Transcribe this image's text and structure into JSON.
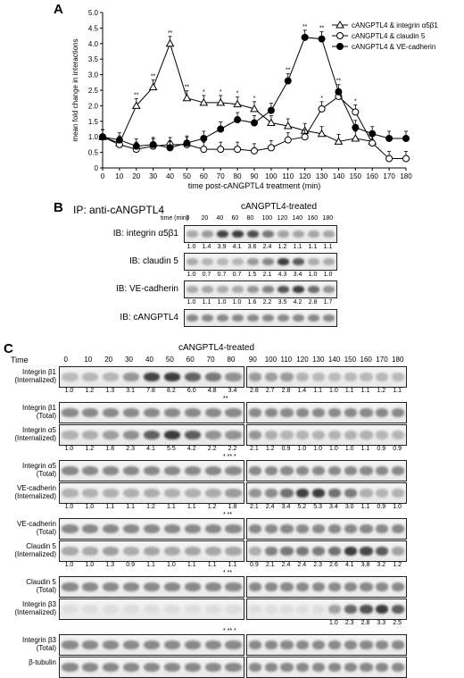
{
  "panelA": {
    "letter": "A",
    "chart_data": {
      "type": "line",
      "ylabel": "mean fold change in interactions",
      "xlabel": "time post-cANGPTL4 treatment (min)",
      "ylim": [
        0,
        5.0
      ],
      "xlim": [
        0,
        180
      ],
      "x": [
        0,
        10,
        20,
        30,
        40,
        50,
        60,
        70,
        80,
        90,
        100,
        110,
        120,
        130,
        140,
        150,
        160,
        170,
        180
      ],
      "yticks": [
        "0",
        "0.5",
        "1.0",
        "1.5",
        "2.0",
        "2.5",
        "3.0",
        "3.5",
        "4.0",
        "4.5",
        "5.0"
      ],
      "xticks": [
        "0",
        "10",
        "20",
        "30",
        "40",
        "50",
        "60",
        "70",
        "80",
        "90",
        "100",
        "110",
        "120",
        "130",
        "140",
        "150",
        "160",
        "170",
        "180"
      ],
      "series": [
        {
          "name": "cANGPTL4 & integrin α5β1",
          "marker": "triangle",
          "values": [
            1.0,
            0.8,
            2.0,
            2.6,
            4.0,
            2.25,
            2.1,
            2.1,
            2.05,
            1.9,
            1.45,
            1.35,
            1.2,
            1.1,
            0.85,
            0.95,
            0.85,
            null,
            null
          ],
          "sig": [
            "",
            "",
            "**",
            "**",
            "**",
            "**",
            "*",
            "*",
            "*",
            "*",
            "",
            "",
            "",
            "",
            "",
            "",
            "",
            "",
            ""
          ]
        },
        {
          "name": "cANGPTL4 & claudin 5",
          "marker": "open-circle",
          "values": [
            1.0,
            0.75,
            0.6,
            0.7,
            0.75,
            0.75,
            0.6,
            0.6,
            0.6,
            0.55,
            0.65,
            0.9,
            1.0,
            1.9,
            2.3,
            1.8,
            0.8,
            0.3,
            0.3
          ],
          "sig": [
            "",
            "",
            "",
            "",
            "",
            "",
            "",
            "",
            "",
            "",
            "",
            "",
            "",
            "*",
            "",
            "*",
            "",
            "",
            ""
          ]
        },
        {
          "name": "cANGPTL4 & VE-cadherin",
          "marker": "filled-circle",
          "values": [
            1.0,
            0.9,
            0.7,
            0.75,
            0.65,
            0.8,
            0.95,
            1.25,
            1.55,
            1.45,
            1.85,
            2.8,
            4.2,
            4.15,
            2.45,
            1.3,
            1.1,
            0.95,
            0.95
          ],
          "sig": [
            "",
            "",
            "",
            "",
            "",
            "",
            "",
            "",
            "",
            "",
            "",
            "**",
            "**",
            "**",
            "**",
            "",
            "",
            "",
            ""
          ]
        }
      ]
    }
  },
  "panelB": {
    "letter": "B",
    "ip_label": "IP: anti-cANGPTL4",
    "treated_label": "cANGPTL4-treated",
    "time_label": "time (min)",
    "times": [
      "0",
      "20",
      "40",
      "60",
      "80",
      "100",
      "120",
      "140",
      "160",
      "180"
    ],
    "rows": [
      {
        "label": "IB: integrin α5β1",
        "quant": [
          "1.0",
          "1.4",
          "3.9",
          "4.1",
          "3.6",
          "2.4",
          "1.2",
          "1.1",
          "1.1",
          "1.1"
        ],
        "sig": "** *"
      },
      {
        "label": "IB: claudin 5",
        "quant": [
          "1.0",
          "0.7",
          "0.7",
          "0.7",
          "1.5",
          "2.1",
          "4.3",
          "3.4",
          "1.0",
          "1.0"
        ],
        "sig": "* **"
      },
      {
        "label": "IB: VE-cadherin",
        "quant": [
          "1.0",
          "1.1",
          "1.0",
          "1.0",
          "1.6",
          "2.2",
          "3.5",
          "4.2",
          "2.8",
          "1.7"
        ],
        "sig": "* **"
      },
      {
        "label": "IB: cANGPTL4",
        "quant": []
      }
    ]
  },
  "panelC": {
    "letter": "C",
    "time_label": "Time",
    "treated_label": "cANGPTL4-treated",
    "times": [
      "0",
      "10",
      "20",
      "30",
      "40",
      "50",
      "60",
      "70",
      "80",
      "90",
      "100",
      "110",
      "120",
      "130",
      "140",
      "150",
      "160",
      "170",
      "180"
    ],
    "rows": [
      {
        "label": "Integrin β1\n(Internalized)",
        "quant": [
          "1.0",
          "1.2",
          "1.3",
          "3.1",
          "7.8",
          "8.2",
          "6.0",
          "4.8",
          "3.4",
          "2.8",
          "2.7",
          "2.8",
          "1.4",
          "1.1",
          "1.0",
          "1.1",
          "1.1",
          "1.2",
          "1.1"
        ],
        "sig": "**"
      },
      {
        "label": "Integrin β1\n(Total)",
        "quant": []
      },
      {
        "label": "Integrin α5\n(Internalized)",
        "quant": [
          "1.0",
          "1.2",
          "1.8",
          "2.3",
          "4.1",
          "5.5",
          "4.2",
          "2.2",
          "2.2",
          "2.1",
          "1.2",
          "0.9",
          "1.0",
          "1.0",
          "1.0",
          "1.0",
          "1.1",
          "0.9",
          "0.9"
        ],
        "sig": "* ** *"
      },
      {
        "label": "Integrin α5\n(Total)",
        "quant": []
      },
      {
        "label": "VE-cadherin\n(Internalized)",
        "quant": [
          "1.0",
          "1.0",
          "1.1",
          "1.1",
          "1.2",
          "1.1",
          "1.1",
          "1.2",
          "1.8",
          "2.1",
          "2.4",
          "3.4",
          "5.2",
          "5.3",
          "3.4",
          "3.0",
          "1.1",
          "0.9",
          "1.0"
        ],
        "sig": "* **"
      },
      {
        "label": "VE-cadherin\n(Total)",
        "quant": []
      },
      {
        "label": "Claudin 5\n(Internalized)",
        "quant": [
          "1.0",
          "1.0",
          "1.3",
          "0.9",
          "1.1",
          "1.0",
          "1.1",
          "1.1",
          "1.1",
          "0.9",
          "2.1",
          "2.4",
          "2.4",
          "2.3",
          "2.6",
          "4.1",
          "3.8",
          "3.2",
          "1.2"
        ],
        "sig": "* **"
      },
      {
        "label": "Claudin 5\n(Total)",
        "quant": []
      },
      {
        "label": "Integrin β3\n(Internalized)",
        "quant": [
          "",
          "",
          "",
          "",
          "",
          "",
          "",
          "",
          "",
          "",
          "",
          "",
          "",
          "",
          "1.0",
          "2.3",
          "2.8",
          "3.3",
          "2.5"
        ],
        "sig": "* ** *"
      },
      {
        "label": "Integrin β3\n(Total)",
        "quant": []
      },
      {
        "label": "β-tubulin",
        "quant": []
      }
    ]
  }
}
